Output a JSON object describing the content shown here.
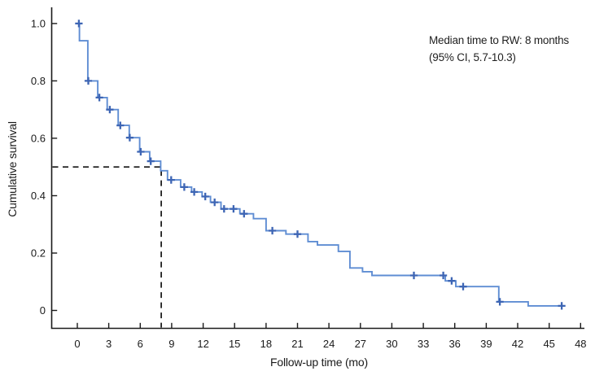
{
  "figure": {
    "background": "#ffffff"
  },
  "chart_data": {
    "type": "line",
    "subtype": "kaplan_meier_step_function",
    "title": "",
    "xlabel": "Follow-up time (mo)",
    "ylabel": "Cumulative survival",
    "xlim": [
      0,
      48
    ],
    "ylim": [
      0,
      1.0
    ],
    "x_ticks": [
      0,
      3,
      6,
      9,
      12,
      15,
      18,
      21,
      24,
      27,
      30,
      33,
      36,
      39,
      42,
      45,
      48
    ],
    "x_tick_labels": [
      "0",
      "3",
      "6",
      "9",
      "12",
      "15",
      "18",
      "21",
      "24",
      "27",
      "30",
      "33",
      "36",
      "39",
      "42",
      "45",
      "48"
    ],
    "y_ticks": [
      0,
      0.2,
      0.4,
      0.6,
      0.8,
      1.0
    ],
    "y_tick_labels": [
      "0",
      "0.2",
      "0.4",
      "0.6",
      "0.8",
      "1.0"
    ],
    "grid": false,
    "legend_position": "none",
    "annotation": {
      "line1": "Median time to RW: 8 months",
      "line2": "(95% CI, 5.7-10.3)"
    },
    "median_reference": {
      "time_months": 8,
      "survival": 0.5
    },
    "series": [
      {
        "name": "cumulative_survival",
        "start": [
          0,
          1.0
        ],
        "steps": [
          [
            0.2,
            0.94
          ],
          [
            1.0,
            0.8
          ],
          [
            1.95,
            0.742
          ],
          [
            2.85,
            0.7
          ],
          [
            3.9,
            0.645
          ],
          [
            4.95,
            0.602
          ],
          [
            5.95,
            0.553
          ],
          [
            6.9,
            0.52
          ],
          [
            7.95,
            0.487
          ],
          [
            8.6,
            0.455
          ],
          [
            9.85,
            0.43
          ],
          [
            10.9,
            0.413
          ],
          [
            11.9,
            0.397
          ],
          [
            12.7,
            0.377
          ],
          [
            13.7,
            0.354
          ],
          [
            15.5,
            0.337
          ],
          [
            16.8,
            0.32
          ],
          [
            18.0,
            0.278
          ],
          [
            19.9,
            0.266
          ],
          [
            22.0,
            0.24
          ],
          [
            22.9,
            0.228
          ],
          [
            24.9,
            0.206
          ],
          [
            26.0,
            0.148
          ],
          [
            27.2,
            0.135
          ],
          [
            28.1,
            0.122
          ],
          [
            35.1,
            0.103
          ],
          [
            36.1,
            0.083
          ],
          [
            40.2,
            0.03
          ],
          [
            43.0,
            0.016
          ]
        ],
        "end_time": 46.3,
        "censor_marks": [
          [
            0.15,
            1.0
          ],
          [
            1.05,
            0.8
          ],
          [
            2.1,
            0.742
          ],
          [
            3.1,
            0.7
          ],
          [
            4.1,
            0.645
          ],
          [
            5.0,
            0.602
          ],
          [
            6.05,
            0.553
          ],
          [
            7.0,
            0.52
          ],
          [
            8.95,
            0.455
          ],
          [
            10.2,
            0.43
          ],
          [
            11.15,
            0.413
          ],
          [
            12.2,
            0.397
          ],
          [
            13.1,
            0.377
          ],
          [
            14.0,
            0.354
          ],
          [
            14.9,
            0.354
          ],
          [
            15.9,
            0.337
          ],
          [
            18.6,
            0.278
          ],
          [
            21.0,
            0.266
          ],
          [
            32.1,
            0.122
          ],
          [
            34.9,
            0.122
          ],
          [
            35.7,
            0.103
          ],
          [
            36.8,
            0.083
          ],
          [
            40.3,
            0.03
          ],
          [
            46.2,
            0.016
          ]
        ]
      }
    ],
    "colors": {
      "curve": "#5f8dd3",
      "censor": "#3d65b4",
      "axis": "#1a1a1a",
      "text": "#1a1a1a",
      "reference": "#141414",
      "background": "#ffffff"
    }
  }
}
